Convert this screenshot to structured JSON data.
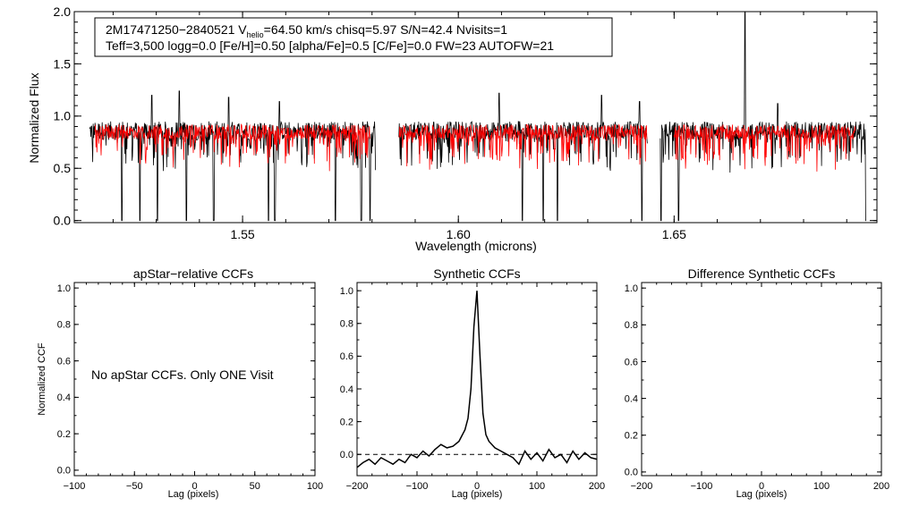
{
  "chart_data": [
    {
      "type": "line",
      "id": "spectrum",
      "xlabel": "Wavelength (microns)",
      "ylabel": "Normalized Flux",
      "xlim": [
        1.511,
        1.697
      ],
      "ylim": [
        -0.02,
        2.0
      ],
      "xticks": [
        1.55,
        1.6,
        1.65
      ],
      "xtick_labels": [
        "1.55",
        "1.60",
        "1.65"
      ],
      "yticks": [
        0.0,
        0.5,
        1.0,
        1.5,
        2.0
      ],
      "ytick_labels": [
        "0.0",
        "0.5",
        "1.0",
        "1.5",
        "2.0"
      ],
      "chips": [
        [
          1.5145,
          1.5808
        ],
        [
          1.5862,
          1.6438
        ],
        [
          1.6468,
          1.6945
        ]
      ],
      "model_chips": [
        [
          1.5158,
          1.5795
        ],
        [
          1.5862,
          1.6438
        ],
        [
          1.65,
          1.692
        ]
      ],
      "series": [
        {
          "name": "observed spectrum",
          "color": "#000000",
          "level": 0.86,
          "noise": 0.09
        },
        {
          "name": "best-fit model",
          "color": "#ff0000",
          "level": 0.85,
          "noise": 0.07
        }
      ],
      "strong_lines": [
        1.5139,
        1.522,
        1.5262,
        1.5303,
        1.537,
        1.5433,
        1.556,
        1.5575,
        1.5715,
        1.5775,
        1.5795,
        1.586,
        1.6148,
        1.6197,
        1.623,
        1.6425,
        1.647,
        1.651,
        1.6945
      ],
      "spikes": [
        {
          "x": 1.529,
          "y": 1.2
        },
        {
          "x": 1.5353,
          "y": 1.24
        },
        {
          "x": 1.5468,
          "y": 1.18
        },
        {
          "x": 1.5585,
          "y": 1.14
        },
        {
          "x": 1.6095,
          "y": 1.22
        },
        {
          "x": 1.6332,
          "y": 1.2
        },
        {
          "x": 1.642,
          "y": 1.14
        },
        {
          "x": 1.6664,
          "y": 2.0
        },
        {
          "x": 1.674,
          "y": 1.12
        }
      ],
      "annotation": {
        "line1": "2M17471250−2840521  V",
        "line1_sub": "helio",
        "line1_rest": "=64.50 km/s  chisq=5.97  S/N=42.4  Nvisits=1",
        "line2": "Teff=3,500 logg=0.0 [Fe/H]=0.50 [alpha/Fe]=0.5 [C/Fe]=0.0 FW=23 AUTOFW=21"
      }
    },
    {
      "type": "line",
      "id": "apstar_ccf",
      "title": "apStar−relative CCFs",
      "xlabel": "Lag (pixels)",
      "ylabel": "Normalized CCF",
      "xlim": [
        -100,
        100
      ],
      "ylim": [
        -0.03,
        1.03
      ],
      "xticks": [
        -100,
        -50,
        0,
        50,
        100
      ],
      "xtick_labels": [
        "−100",
        "−50",
        "0",
        "50",
        "100"
      ],
      "yticks": [
        0.0,
        0.2,
        0.4,
        0.6,
        0.8,
        1.0
      ],
      "ytick_labels": [
        "0.0",
        "0.2",
        "0.4",
        "0.6",
        "0.8",
        "1.0"
      ],
      "message": "No apStar CCFs.  Only ONE Visit",
      "series": []
    },
    {
      "type": "line",
      "id": "synthetic_ccf",
      "title": "Synthetic CCFs",
      "xlabel": "Lag (pixels)",
      "xlim": [
        -200,
        200
      ],
      "ylim": [
        -0.13,
        1.05
      ],
      "xticks": [
        -200,
        -100,
        0,
        100,
        200
      ],
      "xtick_labels": [
        "−200",
        "−100",
        "0",
        "100",
        "200"
      ],
      "yticks": [
        0.0,
        0.2,
        0.4,
        0.6,
        0.8,
        1.0
      ],
      "ytick_labels": [
        "0.0",
        "0.2",
        "0.4",
        "0.6",
        "0.8",
        "1.0"
      ],
      "reference_line": 0.0,
      "series": [
        {
          "name": "synthetic CCF",
          "x": [
            -200,
            -190,
            -180,
            -170,
            -160,
            -150,
            -140,
            -130,
            -120,
            -110,
            -100,
            -90,
            -80,
            -70,
            -60,
            -50,
            -40,
            -30,
            -20,
            -15,
            -10,
            -5,
            0,
            5,
            10,
            15,
            20,
            30,
            40,
            50,
            60,
            70,
            80,
            90,
            100,
            110,
            120,
            130,
            140,
            150,
            160,
            170,
            180,
            190,
            200
          ],
          "values": [
            -0.08,
            -0.05,
            -0.03,
            -0.06,
            -0.02,
            -0.04,
            -0.06,
            -0.03,
            -0.05,
            0.0,
            -0.02,
            0.02,
            -0.01,
            0.03,
            0.06,
            0.04,
            0.05,
            0.08,
            0.15,
            0.22,
            0.4,
            0.78,
            1.0,
            0.6,
            0.25,
            0.12,
            0.08,
            0.04,
            0.02,
            0.0,
            -0.02,
            -0.06,
            0.02,
            -0.03,
            0.01,
            -0.04,
            0.03,
            -0.02,
            0.0,
            -0.05,
            0.02,
            -0.03,
            0.01,
            -0.02,
            -0.03
          ]
        }
      ]
    },
    {
      "type": "line",
      "id": "difference_ccf",
      "title": "Difference Synthetic CCFs",
      "xlabel": "Lag (pixels)",
      "xlim": [
        -200,
        200
      ],
      "ylim": [
        -0.02,
        1.03
      ],
      "xticks": [
        -200,
        -100,
        0,
        100,
        200
      ],
      "xtick_labels": [
        "−200",
        "−100",
        "0",
        "100",
        "200"
      ],
      "yticks": [
        0.0,
        0.2,
        0.4,
        0.6,
        0.8,
        1.0
      ],
      "ytick_labels": [
        "0.0",
        "0.2",
        "0.4",
        "0.6",
        "0.8",
        "1.0"
      ],
      "series": []
    }
  ]
}
